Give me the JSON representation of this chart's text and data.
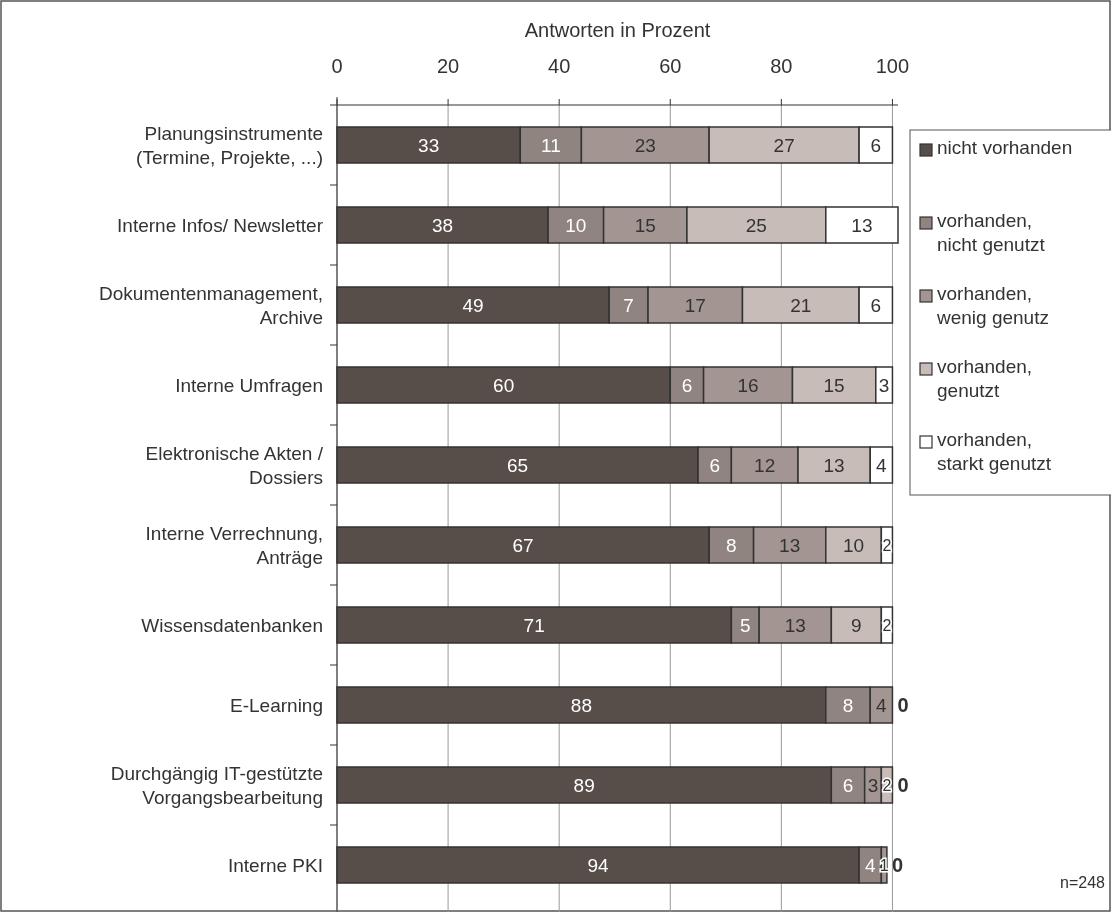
{
  "chart_data": {
    "type": "bar",
    "orientation": "horizontal",
    "stacked": true,
    "xlabel": "Antworten in Prozent",
    "categories": [
      "Planungsinstrumente\n(Termine, Projekte, ...)",
      "Interne Infos/ Newsletter",
      "Dokumentenmanagement,\nArchive",
      "Interne Umfragen",
      "Elektronische Akten /\nDossiers",
      "Interne Verrechnung,\nAnträge",
      "Wissensdatenbanken",
      "E-Learning",
      "Durchgängig IT-gestützte\nVorgangsbearbeitung",
      "Interne PKI"
    ],
    "series": [
      {
        "name": "nicht vorhanden",
        "color": "#574e4a",
        "values": [
          33,
          38,
          49,
          60,
          65,
          67,
          71,
          88,
          89,
          94
        ],
        "value_labels": [
          "33",
          "38",
          "49",
          "60",
          "65",
          "67",
          "71",
          "88",
          "89",
          "94"
        ]
      },
      {
        "name": "vorhanden, nicht genutzt",
        "color": "#8f8480",
        "values": [
          11,
          10,
          7,
          6,
          6,
          8,
          5,
          8,
          6,
          4
        ],
        "value_labels": [
          "11",
          "10",
          "7",
          "6",
          "6",
          "8",
          "5",
          "8",
          "6",
          "4"
        ]
      },
      {
        "name": "vorhanden, wenig genutz",
        "color": "#a39692",
        "values": [
          23,
          15,
          17,
          16,
          12,
          13,
          13,
          4,
          3,
          1
        ],
        "value_labels": [
          "23",
          "15",
          "17",
          "16",
          "12",
          "13",
          "13",
          "4",
          "3",
          "1"
        ]
      },
      {
        "name": "vorhanden, genutzt",
        "color": "#c8bcb8",
        "values": [
          27,
          25,
          21,
          15,
          13,
          10,
          9,
          0,
          2,
          0
        ],
        "value_labels": [
          "27",
          "25",
          "21",
          "15",
          "13",
          "10",
          "9",
          null,
          "2",
          null
        ]
      },
      {
        "name": "vorhanden, starkt genutzt",
        "color": "#ffffff",
        "values": [
          6,
          13,
          6,
          3,
          4,
          2,
          2,
          0,
          0,
          0
        ],
        "value_labels": [
          "6",
          "13",
          "6",
          "3",
          "4",
          "2",
          "2",
          "0",
          "0",
          "0"
        ]
      }
    ],
    "xlim": [
      0,
      101
    ],
    "xticks": [
      0,
      20,
      40,
      60,
      80,
      100
    ],
    "grid": "x",
    "legend": "right",
    "annotations": [
      "n=248"
    ]
  }
}
